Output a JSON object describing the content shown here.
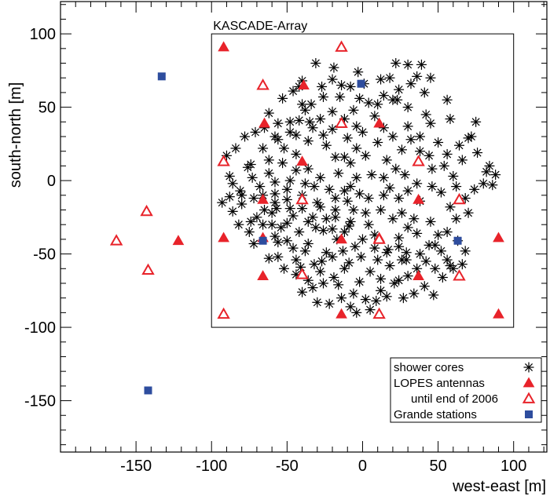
{
  "chart_data": {
    "type": "scatter",
    "xlabel": "west-east [m]",
    "ylabel": "south-north [m]",
    "xlim": [
      -200,
      122
    ],
    "ylim": [
      -185,
      122
    ],
    "xticks": [
      -150,
      -100,
      -50,
      0,
      50,
      100
    ],
    "yticks": [
      -150,
      -100,
      -50,
      0,
      50,
      100
    ],
    "grid": false,
    "legend_position": "bottom-right",
    "annotations": [
      {
        "text": "KASCADE-Array",
        "x_range": [
          -100,
          100
        ],
        "y_range": [
          -100,
          100
        ]
      }
    ],
    "colors": {
      "red": "#e8232a",
      "blue": "#2e4d9e",
      "black": "#000000"
    },
    "series": [
      {
        "name": "shower cores",
        "marker": "asterisk",
        "color": "#000000",
        "points": [
          [
            -31,
            80
          ],
          [
            -42,
            64
          ],
          [
            -27,
            64
          ],
          [
            -20,
            69
          ],
          [
            -14,
            65
          ],
          [
            -8,
            64
          ],
          [
            -3,
            74
          ],
          [
            -19,
            77
          ],
          [
            12,
            69
          ],
          [
            18,
            70
          ],
          [
            22,
            80
          ],
          [
            30,
            79
          ],
          [
            39,
            79
          ],
          [
            36,
            71
          ],
          [
            45,
            70
          ],
          [
            10,
            52
          ],
          [
            -2,
            56
          ],
          [
            -53,
            56
          ],
          [
            -62,
            46
          ],
          [
            -56,
            39
          ],
          [
            -48,
            40
          ],
          [
            -46,
            61
          ],
          [
            -40,
            68
          ],
          [
            -15,
            57
          ],
          [
            -34,
            52
          ],
          [
            -28,
            42
          ],
          [
            -38,
            48
          ],
          [
            -42,
            41
          ],
          [
            1,
            66
          ],
          [
            20,
            55
          ],
          [
            23,
            55
          ],
          [
            41,
            60
          ],
          [
            56,
            55
          ],
          [
            30,
            50
          ],
          [
            42,
            45
          ],
          [
            45,
            39
          ],
          [
            58,
            42
          ],
          [
            75,
            40
          ],
          [
            -35,
            40
          ],
          [
            -33,
            36
          ],
          [
            -26,
            31
          ],
          [
            -36,
            27
          ],
          [
            -44,
            31
          ],
          [
            -48,
            33
          ],
          [
            -58,
            30
          ],
          [
            -65,
            36
          ],
          [
            -71,
            33
          ],
          [
            -78,
            30
          ],
          [
            -84,
            22
          ],
          [
            -90,
            17
          ],
          [
            -62,
            14
          ],
          [
            -76,
            9
          ],
          [
            -53,
            12
          ],
          [
            -62,
            5
          ],
          [
            -73,
            2
          ],
          [
            -86,
            -2
          ],
          [
            -88,
            3
          ],
          [
            -81,
            -7
          ],
          [
            -68,
            -4
          ],
          [
            -58,
            -9
          ],
          [
            -50,
            -13
          ],
          [
            -57,
            -19
          ],
          [
            -60,
            -30
          ],
          [
            -54,
            -32
          ],
          [
            -46,
            -24
          ],
          [
            -33,
            -25
          ],
          [
            -31,
            -32
          ],
          [
            -42,
            -35
          ],
          [
            -50,
            -41
          ],
          [
            -56,
            -42
          ],
          [
            -46,
            -46
          ],
          [
            -36,
            -43
          ],
          [
            -24,
            -49
          ],
          [
            -27,
            -55
          ],
          [
            -32,
            -57
          ],
          [
            -38,
            -48
          ],
          [
            -44,
            -54
          ],
          [
            -56,
            -52
          ],
          [
            -62,
            -53
          ],
          [
            -72,
            -43
          ],
          [
            -75,
            -35
          ],
          [
            -82,
            -30
          ],
          [
            -86,
            -21
          ],
          [
            -93,
            -15
          ],
          [
            -80,
            -16
          ],
          [
            -72,
            -12
          ],
          [
            -70,
            -25
          ],
          [
            -65,
            -20
          ],
          [
            -58,
            -15
          ],
          [
            -48,
            -19
          ],
          [
            -40,
            -10
          ],
          [
            -30,
            -15
          ],
          [
            -24,
            -26
          ],
          [
            -18,
            -20
          ],
          [
            -10,
            -14
          ],
          [
            -2,
            -9
          ],
          [
            2,
            -22
          ],
          [
            -9,
            -31
          ],
          [
            -17,
            -40
          ],
          [
            -13,
            -48
          ],
          [
            -5,
            -45
          ],
          [
            8,
            -37
          ],
          [
            16,
            -49
          ],
          [
            24,
            -39
          ],
          [
            30,
            -32
          ],
          [
            34,
            -26
          ],
          [
            45,
            -28
          ],
          [
            50,
            -37
          ],
          [
            56,
            -35
          ],
          [
            63,
            -41
          ],
          [
            68,
            -48
          ],
          [
            58,
            -58
          ],
          [
            48,
            -60
          ],
          [
            38,
            -50
          ],
          [
            29,
            -49
          ],
          [
            26,
            -54
          ],
          [
            18,
            -58
          ],
          [
            12,
            -67
          ],
          [
            5,
            -62
          ],
          [
            -2,
            -69
          ],
          [
            -12,
            -60
          ],
          [
            -19,
            -66
          ],
          [
            -26,
            -70
          ],
          [
            -33,
            -73
          ],
          [
            -41,
            -59
          ],
          [
            -40,
            -76
          ],
          [
            -30,
            -83
          ],
          [
            -22,
            -84
          ],
          [
            -14,
            -80
          ],
          [
            -8,
            -86
          ],
          [
            -4,
            -90
          ],
          [
            5,
            -88
          ],
          [
            9,
            -82
          ],
          [
            12,
            -75
          ],
          [
            21,
            -70
          ],
          [
            27,
            -80
          ],
          [
            34,
            -77
          ],
          [
            41,
            -72
          ],
          [
            47,
            -78
          ],
          [
            53,
            -66
          ],
          [
            60,
            -60
          ],
          [
            66,
            -57
          ],
          [
            -20,
            -52
          ],
          [
            -9,
            -56
          ],
          [
            -1,
            -52
          ],
          [
            10,
            -54
          ],
          [
            17,
            -47
          ],
          [
            24,
            -45
          ],
          [
            29,
            -54
          ],
          [
            36,
            -60
          ],
          [
            42,
            -55
          ],
          [
            -8,
            -28
          ],
          [
            0,
            -40
          ],
          [
            -26,
            -34
          ],
          [
            -18,
            -25
          ],
          [
            -12,
            -7
          ],
          [
            -4,
            2
          ],
          [
            4,
            -12
          ],
          [
            12,
            -20
          ],
          [
            18,
            -5
          ],
          [
            24,
            -12
          ],
          [
            30,
            -7
          ],
          [
            38,
            -14
          ],
          [
            46,
            -4
          ],
          [
            52,
            -8
          ],
          [
            58,
            -18
          ],
          [
            62,
            -26
          ],
          [
            68,
            -12
          ],
          [
            74,
            -6
          ],
          [
            -16,
            5
          ],
          [
            -8,
            12
          ],
          [
            2,
            17
          ],
          [
            10,
            26
          ],
          [
            16,
            14
          ],
          [
            22,
            8
          ],
          [
            26,
            21
          ],
          [
            32,
            28
          ],
          [
            38,
            20
          ],
          [
            44,
            17
          ],
          [
            50,
            26
          ],
          [
            54,
            10
          ],
          [
            60,
            3
          ],
          [
            66,
            14
          ],
          [
            70,
            29
          ],
          [
            76,
            19
          ],
          [
            82,
            6
          ],
          [
            86,
            -3
          ],
          [
            -24,
            24
          ],
          [
            -18,
            16
          ],
          [
            -10,
            29
          ],
          [
            -4,
            37
          ],
          [
            -20,
            47
          ],
          [
            -12,
            42
          ],
          [
            0,
            33
          ],
          [
            8,
            44
          ],
          [
            14,
            36
          ],
          [
            20,
            30
          ],
          [
            30,
            37
          ],
          [
            38,
            30
          ],
          [
            -52,
            22
          ],
          [
            -44,
            18
          ],
          [
            -36,
            8
          ],
          [
            -28,
            2
          ],
          [
            -22,
            -6
          ],
          [
            -32,
            -4
          ],
          [
            -48,
            0
          ],
          [
            -44,
            7
          ],
          [
            -38,
            -2
          ],
          [
            -50,
            -6
          ],
          [
            -28,
            -18
          ],
          [
            -36,
            -28
          ],
          [
            -40,
            -19
          ],
          [
            -20,
            -33
          ],
          [
            -12,
            -35
          ],
          [
            -6,
            -20
          ],
          [
            4,
            -30
          ],
          [
            14,
            -10
          ],
          [
            20,
            -26
          ],
          [
            26,
            -22
          ],
          [
            36,
            -36
          ],
          [
            44,
            -44
          ],
          [
            52,
            -48
          ],
          [
            62,
            -4
          ],
          [
            70,
            -22
          ],
          [
            80,
            -2
          ],
          [
            84,
            10
          ],
          [
            88,
            4
          ],
          [
            -12,
            16
          ],
          [
            -4,
            22
          ],
          [
            6,
            4
          ],
          [
            14,
            2
          ],
          [
            28,
            4
          ],
          [
            36,
            -2
          ],
          [
            46,
            8
          ],
          [
            56,
            18
          ],
          [
            64,
            24
          ],
          [
            72,
            30
          ],
          [
            -58,
            -1
          ],
          [
            -66,
            -10
          ],
          [
            -74,
            -28
          ],
          [
            -66,
            -30
          ],
          [
            -58,
            -38
          ],
          [
            -50,
            -29
          ],
          [
            -52,
            -60
          ],
          [
            -44,
            -64
          ],
          [
            -36,
            -68
          ],
          [
            -28,
            -62
          ],
          [
            -16,
            -71
          ],
          [
            -6,
            -77
          ],
          [
            2,
            -81
          ],
          [
            16,
            -79
          ],
          [
            24,
            -68
          ],
          [
            30,
            -65
          ],
          [
            48,
            -44
          ],
          [
            56,
            -54
          ],
          [
            -20,
            35
          ],
          [
            -6,
            48
          ],
          [
            4,
            53
          ],
          [
            14,
            58
          ],
          [
            24,
            62
          ],
          [
            32,
            66
          ],
          [
            -26,
            57
          ],
          [
            -60,
            -22
          ],
          [
            -80,
            -10
          ],
          [
            -88,
            -11
          ],
          [
            -74,
            11
          ],
          [
            -8,
            -4
          ],
          [
            -40,
            52
          ],
          [
            -56,
            28
          ],
          [
            -66,
            22
          ],
          [
            -18,
            -12
          ],
          [
            8,
            -46
          ]
        ]
      },
      {
        "name": "LOPES antennas",
        "marker": "triangle-filled",
        "color": "#e8232a",
        "points": [
          [
            -92,
            91
          ],
          [
            -39,
            65
          ],
          [
            -65,
            39
          ],
          [
            11,
            39
          ],
          [
            -40,
            13
          ],
          [
            -66,
            -13
          ],
          [
            37,
            -13
          ],
          [
            -92,
            -39
          ],
          [
            -66,
            -39
          ],
          [
            -14,
            -40
          ],
          [
            11,
            -39
          ],
          [
            90,
            -39
          ],
          [
            -66,
            -65
          ],
          [
            37,
            -65
          ],
          [
            -14,
            -91
          ],
          [
            90,
            -91
          ],
          [
            -122,
            -41
          ]
        ]
      },
      {
        "name": "until end of 2006",
        "marker": "triangle-open",
        "color": "#e8232a",
        "points": [
          [
            -14,
            91
          ],
          [
            -66,
            65
          ],
          [
            -14,
            39
          ],
          [
            -92,
            13
          ],
          [
            37,
            13
          ],
          [
            -40,
            -13
          ],
          [
            64,
            -13
          ],
          [
            11,
            -40
          ],
          [
            -40,
            -64
          ],
          [
            64,
            -65
          ],
          [
            -92,
            -91
          ],
          [
            11,
            -91
          ],
          [
            -143,
            -21
          ],
          [
            -163,
            -41
          ],
          [
            -142,
            -61
          ]
        ]
      },
      {
        "name": "Grande stations",
        "marker": "square-filled",
        "color": "#2e4d9e",
        "points": [
          [
            -133,
            71
          ],
          [
            -1,
            66
          ],
          [
            -66,
            -41
          ],
          [
            63,
            -41
          ],
          [
            -142,
            -143
          ]
        ]
      }
    ]
  }
}
